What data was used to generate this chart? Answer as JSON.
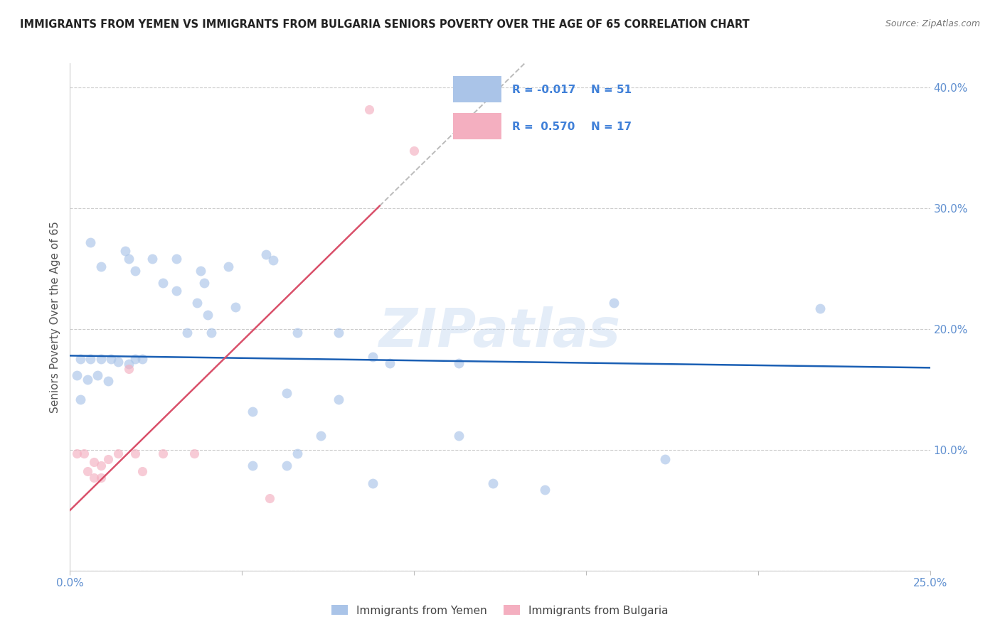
{
  "title": "IMMIGRANTS FROM YEMEN VS IMMIGRANTS FROM BULGARIA SENIORS POVERTY OVER THE AGE OF 65 CORRELATION CHART",
  "source": "Source: ZipAtlas.com",
  "ylabel": "Seniors Poverty Over the Age of 65",
  "xlim": [
    0.0,
    0.25
  ],
  "ylim": [
    0.0,
    0.42
  ],
  "xticks": [
    0.0,
    0.05,
    0.1,
    0.15,
    0.2,
    0.25
  ],
  "yticks": [
    0.0,
    0.1,
    0.2,
    0.3,
    0.4
  ],
  "xtick_labels": [
    "0.0%",
    "",
    "",
    "",
    "",
    "25.0%"
  ],
  "ytick_labels": [
    "",
    "10.0%",
    "20.0%",
    "30.0%",
    "40.0%"
  ],
  "legend_entries": [
    {
      "label": "Immigrants from Yemen",
      "color": "#aac4e8",
      "R": "-0.017",
      "N": "51"
    },
    {
      "label": "Immigrants from Bulgaria",
      "color": "#f4afc0",
      "R": "0.570",
      "N": "17"
    }
  ],
  "blue_line_color": "#1a5fb4",
  "pink_line_color": "#d9506a",
  "dashed_line_color": "#bbbbbb",
  "watermark": "ZIPatlas",
  "yemen_scatter": [
    [
      0.003,
      0.175
    ],
    [
      0.006,
      0.175
    ],
    [
      0.009,
      0.175
    ],
    [
      0.012,
      0.175
    ],
    [
      0.014,
      0.173
    ],
    [
      0.017,
      0.171
    ],
    [
      0.019,
      0.175
    ],
    [
      0.021,
      0.175
    ],
    [
      0.002,
      0.162
    ],
    [
      0.005,
      0.158
    ],
    [
      0.008,
      0.162
    ],
    [
      0.011,
      0.157
    ],
    [
      0.003,
      0.142
    ],
    [
      0.006,
      0.272
    ],
    [
      0.009,
      0.252
    ],
    [
      0.016,
      0.265
    ],
    [
      0.017,
      0.258
    ],
    [
      0.019,
      0.248
    ],
    [
      0.024,
      0.258
    ],
    [
      0.031,
      0.258
    ],
    [
      0.027,
      0.238
    ],
    [
      0.031,
      0.232
    ],
    [
      0.038,
      0.248
    ],
    [
      0.039,
      0.238
    ],
    [
      0.046,
      0.252
    ],
    [
      0.037,
      0.222
    ],
    [
      0.04,
      0.212
    ],
    [
      0.048,
      0.218
    ],
    [
      0.034,
      0.197
    ],
    [
      0.041,
      0.197
    ],
    [
      0.057,
      0.262
    ],
    [
      0.059,
      0.257
    ],
    [
      0.066,
      0.197
    ],
    [
      0.078,
      0.197
    ],
    [
      0.088,
      0.177
    ],
    [
      0.093,
      0.172
    ],
    [
      0.063,
      0.147
    ],
    [
      0.078,
      0.142
    ],
    [
      0.066,
      0.097
    ],
    [
      0.073,
      0.112
    ],
    [
      0.053,
      0.132
    ],
    [
      0.063,
      0.087
    ],
    [
      0.053,
      0.087
    ],
    [
      0.088,
      0.072
    ],
    [
      0.113,
      0.172
    ],
    [
      0.113,
      0.112
    ],
    [
      0.123,
      0.072
    ],
    [
      0.138,
      0.067
    ],
    [
      0.158,
      0.222
    ],
    [
      0.173,
      0.092
    ],
    [
      0.218,
      0.217
    ]
  ],
  "bulgaria_scatter": [
    [
      0.002,
      0.097
    ],
    [
      0.004,
      0.097
    ],
    [
      0.007,
      0.09
    ],
    [
      0.009,
      0.087
    ],
    [
      0.005,
      0.082
    ],
    [
      0.007,
      0.077
    ],
    [
      0.009,
      0.077
    ],
    [
      0.011,
      0.092
    ],
    [
      0.017,
      0.167
    ],
    [
      0.014,
      0.097
    ],
    [
      0.019,
      0.097
    ],
    [
      0.027,
      0.097
    ],
    [
      0.021,
      0.082
    ],
    [
      0.036,
      0.097
    ],
    [
      0.058,
      0.06
    ],
    [
      0.087,
      0.382
    ],
    [
      0.1,
      0.348
    ]
  ],
  "scatter_size_blue": 100,
  "scatter_size_pink": 90,
  "scatter_alpha": 0.65,
  "bg_color": "#ffffff",
  "grid_color": "#cccccc",
  "tick_color": "#6090d0",
  "ylabel_color": "#555555",
  "title_color": "#222222",
  "source_color": "#777777"
}
